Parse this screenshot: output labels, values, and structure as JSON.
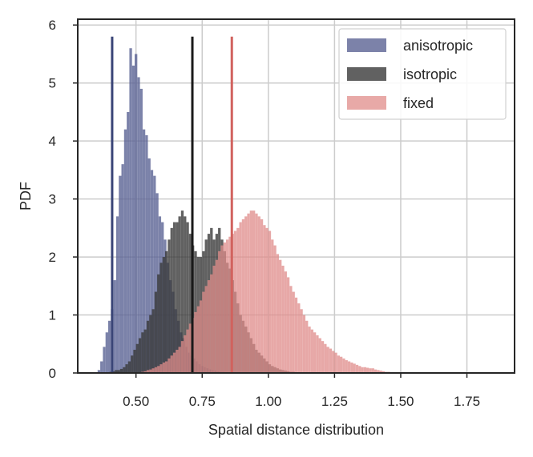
{
  "chart_data": {
    "type": "histogram",
    "title": "",
    "xlabel": "Spatial distance distribution",
    "ylabel": "PDF",
    "xlim": [
      0.28,
      1.93
    ],
    "ylim": [
      0,
      6.1
    ],
    "xticks": [
      0.5,
      0.75,
      1.0,
      1.25,
      1.5,
      1.75
    ],
    "xtick_labels": [
      "0.50",
      "0.75",
      "1.00",
      "1.25",
      "1.50",
      "1.75"
    ],
    "yticks": [
      0,
      1,
      2,
      3,
      4,
      5,
      6
    ],
    "ytick_labels": [
      "0",
      "1",
      "2",
      "3",
      "4",
      "5",
      "6"
    ],
    "grid": true,
    "legend_position": "top-right",
    "series": [
      {
        "name": "anisotropic",
        "color": "#5b6394",
        "bin_start": 0.355,
        "bin_width": 0.01,
        "values": [
          0.05,
          0.2,
          0.45,
          0.7,
          0.9,
          1.1,
          1.6,
          2.7,
          3.4,
          3.6,
          4.2,
          4.5,
          5.6,
          5.3,
          5.5,
          5.1,
          4.9,
          4.2,
          4.1,
          3.7,
          3.5,
          3.4,
          3.1,
          2.7,
          2.6,
          2.3,
          1.9,
          1.6,
          1.4,
          1.1,
          0.9,
          0.7,
          0.6,
          0.45,
          0.35,
          0.3,
          0.25,
          0.2,
          0.15,
          0.12,
          0.1,
          0.08,
          0.06,
          0.05,
          0.04,
          0.03,
          0.02,
          0.02,
          0.01
        ]
      },
      {
        "name": "isotropic",
        "color": "#3a3a3a",
        "bin_start": 0.4,
        "bin_width": 0.01,
        "values": [
          0.02,
          0.03,
          0.05,
          0.05,
          0.07,
          0.1,
          0.15,
          0.2,
          0.3,
          0.4,
          0.5,
          0.6,
          0.7,
          0.75,
          0.9,
          1.0,
          1.1,
          1.4,
          1.7,
          1.9,
          2.0,
          2.1,
          2.3,
          2.5,
          2.6,
          2.6,
          2.7,
          2.8,
          2.7,
          2.6,
          2.4,
          2.2,
          2.1,
          2.0,
          2.0,
          2.1,
          2.3,
          2.4,
          2.5,
          2.3,
          2.4,
          2.5,
          2.3,
          2.1,
          1.9,
          1.8,
          1.6,
          1.4,
          1.2,
          1.0,
          0.9,
          0.8,
          0.7,
          0.6,
          0.5,
          0.4,
          0.35,
          0.3,
          0.25,
          0.2,
          0.15,
          0.12,
          0.1,
          0.08,
          0.06,
          0.05,
          0.04,
          0.03,
          0.02,
          0.02,
          0.01
        ]
      },
      {
        "name": "fixed",
        "color": "#e08c8a",
        "bin_start": 0.52,
        "bin_width": 0.01,
        "values": [
          0.02,
          0.03,
          0.05,
          0.06,
          0.08,
          0.1,
          0.12,
          0.15,
          0.18,
          0.2,
          0.25,
          0.3,
          0.35,
          0.4,
          0.45,
          0.55,
          0.65,
          0.75,
          0.85,
          0.95,
          1.05,
          1.15,
          1.25,
          1.4,
          1.5,
          1.6,
          1.7,
          1.85,
          1.95,
          2.1,
          2.2,
          2.25,
          2.3,
          2.35,
          2.4,
          2.45,
          2.5,
          2.6,
          2.65,
          2.7,
          2.75,
          2.8,
          2.8,
          2.75,
          2.7,
          2.65,
          2.55,
          2.5,
          2.45,
          2.3,
          2.2,
          2.05,
          1.95,
          1.85,
          1.75,
          1.65,
          1.5,
          1.4,
          1.3,
          1.2,
          1.1,
          1.0,
          0.9,
          0.8,
          0.75,
          0.7,
          0.65,
          0.6,
          0.55,
          0.5,
          0.45,
          0.42,
          0.38,
          0.35,
          0.3,
          0.28,
          0.25,
          0.22,
          0.2,
          0.18,
          0.16,
          0.14,
          0.12,
          0.1,
          0.1,
          0.09,
          0.08,
          0.08,
          0.06,
          0.05,
          0.04,
          0.03,
          0.02,
          0.02,
          0.01,
          0.01,
          0.01
        ]
      }
    ],
    "vertical_lines": [
      {
        "series": "anisotropic",
        "x": 0.41,
        "y_top": 5.8,
        "color": "#3a4577"
      },
      {
        "series": "isotropic",
        "x": 0.713,
        "y_top": 5.8,
        "color": "#1a1a1a"
      },
      {
        "series": "fixed",
        "x": 0.862,
        "y_top": 5.8,
        "color": "#d1625e"
      }
    ]
  }
}
